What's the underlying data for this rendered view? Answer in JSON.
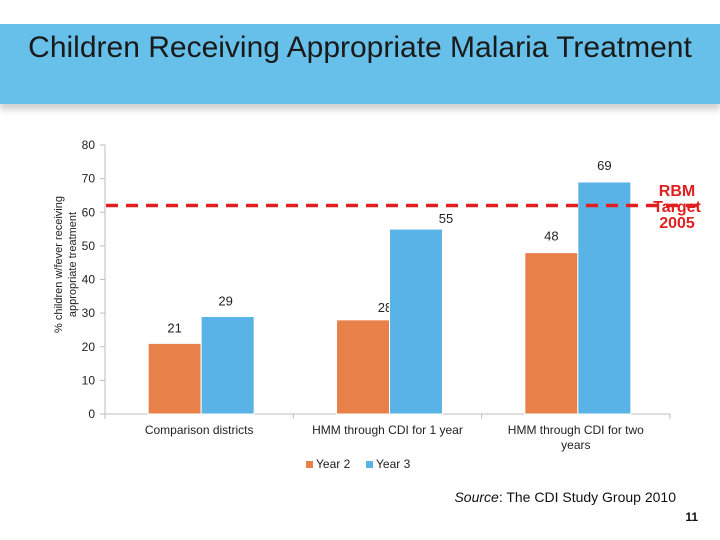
{
  "slide": {
    "title": "Children Receiving Appropriate Malaria Treatment",
    "source_label": "Source",
    "source_text": ": The CDI Study Group 2010",
    "slide_number": "11"
  },
  "colors": {
    "banner": "#66c0ea",
    "year2": "#e8804a",
    "year3": "#5ab3e6",
    "target": "#e02020"
  },
  "chart_data": {
    "type": "bar",
    "title": "Children Receiving Appropriate Malaria Treatment",
    "xlabel": "",
    "ylabel": "% children w/fever receiving appropriate treatment",
    "ylim": [
      0,
      80
    ],
    "yticks": [
      0,
      10,
      20,
      30,
      40,
      50,
      60,
      70,
      80
    ],
    "categories": [
      "Comparison districts",
      "HMM through CDI for 1 year",
      "HMM through CDI for two years"
    ],
    "series": [
      {
        "name": "Year 2",
        "values": [
          21,
          28,
          48
        ]
      },
      {
        "name": "Year 3",
        "values": [
          29,
          55,
          69
        ]
      }
    ],
    "reference_line": {
      "label": "RBM Target 2005",
      "value": 62
    },
    "legend_position": "bottom"
  }
}
